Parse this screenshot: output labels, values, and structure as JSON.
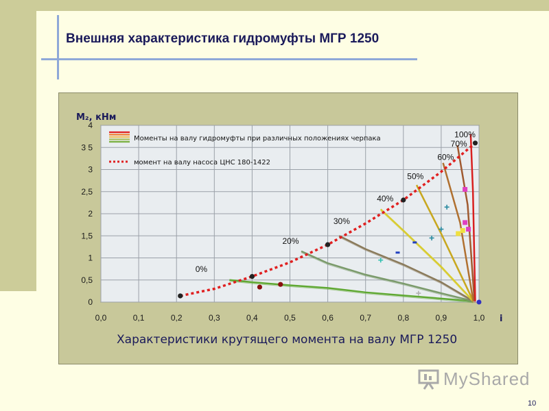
{
  "slide": {
    "title": "Внешняя характеристика гидромуфты МГР 1250",
    "page_number": "10",
    "logo_text": "MyShared"
  },
  "colors": {
    "panel_bg": "#c8c89a",
    "plot_bg": "#e9edf0",
    "pump_curve": "#e02020",
    "title_text": "#1a1a5a",
    "accent_line": "#8ea8d8"
  },
  "chart_data": {
    "type": "line",
    "title": "Характеристики крутящего момента на валу МГР 1250",
    "xlabel": "i",
    "ylabel": "М₂, кНм",
    "xlim": [
      0,
      1
    ],
    "ylim": [
      0,
      4
    ],
    "grid": true,
    "legend_position": "top-left",
    "x_tick_labels": [
      "0,0",
      "0,1",
      "0,2",
      "0,3",
      "0,4",
      "0,5",
      "0,6",
      "0,7",
      "0,8",
      "0,9",
      "1,0"
    ],
    "y_tick_labels": [
      "0",
      "0,5",
      "1",
      "1,5",
      "2",
      "2,5",
      "3",
      "3 5",
      "4"
    ],
    "legend": {
      "entry_curves": "Моменты на валу гидромуфты при различных положениях черпака",
      "entry_pump": "момент на валу насоса ЦНС 180-1422"
    },
    "series": [
      {
        "name": "0%",
        "color": "#5fa832",
        "points": [
          [
            0.34,
            0.5
          ],
          [
            0.4,
            0.45
          ],
          [
            0.5,
            0.38
          ],
          [
            0.6,
            0.32
          ],
          [
            0.7,
            0.22
          ],
          [
            0.8,
            0.15
          ],
          [
            0.9,
            0.08
          ],
          [
            0.985,
            0.02
          ]
        ]
      },
      {
        "name": "20%",
        "color": "#7a9a6a",
        "points": [
          [
            0.53,
            1.15
          ],
          [
            0.6,
            0.88
          ],
          [
            0.7,
            0.62
          ],
          [
            0.8,
            0.42
          ],
          [
            0.9,
            0.2
          ],
          [
            0.985,
            0.02
          ]
        ]
      },
      {
        "name": "30%",
        "color": "#8a7a5a",
        "points": [
          [
            0.63,
            1.5
          ],
          [
            0.7,
            1.2
          ],
          [
            0.8,
            0.85
          ],
          [
            0.9,
            0.45
          ],
          [
            0.985,
            0.02
          ]
        ]
      },
      {
        "name": "40%",
        "color": "#d8cc30",
        "points": [
          [
            0.74,
            2.1
          ],
          [
            0.8,
            1.62
          ],
          [
            0.9,
            0.8
          ],
          [
            0.985,
            0.02
          ]
        ]
      },
      {
        "name": "50%",
        "color": "#c8a820",
        "points": [
          [
            0.835,
            2.65
          ],
          [
            0.9,
            1.55
          ],
          [
            0.985,
            0.02
          ]
        ]
      },
      {
        "name": "60%",
        "color": "#b07030",
        "points": [
          [
            0.905,
            3.15
          ],
          [
            0.95,
            1.8
          ],
          [
            0.985,
            0.02
          ]
        ]
      },
      {
        "name": "70%",
        "color": "#a05a30",
        "points": [
          [
            0.943,
            3.55
          ],
          [
            0.97,
            2.2
          ],
          [
            0.988,
            0.02
          ]
        ]
      },
      {
        "name": "100%",
        "color": "#d82020",
        "points": [
          [
            0.978,
            3.8
          ],
          [
            0.984,
            2.5
          ],
          [
            0.99,
            0.02
          ]
        ]
      }
    ],
    "pump_curve": {
      "points": [
        [
          0.21,
          0.14
        ],
        [
          0.3,
          0.3
        ],
        [
          0.4,
          0.58
        ],
        [
          0.5,
          0.9
        ],
        [
          0.6,
          1.3
        ],
        [
          0.7,
          1.78
        ],
        [
          0.8,
          2.31
        ],
        [
          0.9,
          2.95
        ],
        [
          0.99,
          3.6
        ]
      ]
    },
    "pump_markers": [
      [
        0.21,
        0.14
      ],
      [
        0.4,
        0.58
      ],
      [
        0.6,
        1.3
      ],
      [
        0.8,
        2.31
      ],
      [
        0.99,
        3.6
      ]
    ],
    "dark_red_markers": [
      [
        0.42,
        0.34
      ],
      [
        0.475,
        0.4
      ]
    ],
    "scatter_marks": [
      {
        "x": 0.963,
        "y": 2.55,
        "color": "#e040c0",
        "shape": "square"
      },
      {
        "x": 0.963,
        "y": 1.8,
        "color": "#e040c0",
        "shape": "square"
      },
      {
        "x": 0.972,
        "y": 1.65,
        "color": "#e040c0",
        "shape": "square"
      },
      {
        "x": 0.945,
        "y": 1.55,
        "color": "#f0e040",
        "shape": "square"
      },
      {
        "x": 0.957,
        "y": 1.62,
        "color": "#f0e040",
        "shape": "square"
      },
      {
        "x": 0.915,
        "y": 2.15,
        "color": "#2a8aa0",
        "shape": "plus"
      },
      {
        "x": 0.9,
        "y": 1.65,
        "color": "#2a8aa0",
        "shape": "plus"
      },
      {
        "x": 0.875,
        "y": 1.45,
        "color": "#2a8aa0",
        "shape": "plus"
      },
      {
        "x": 0.74,
        "y": 0.95,
        "color": "#30c0b0",
        "shape": "plus"
      },
      {
        "x": 0.785,
        "y": 1.12,
        "color": "#2040c0",
        "shape": "dash"
      },
      {
        "x": 0.83,
        "y": 1.35,
        "color": "#2040c0",
        "shape": "dash"
      },
      {
        "x": 0.84,
        "y": 0.2,
        "color": "#b0b0b0",
        "shape": "plus"
      }
    ],
    "endpoint_marker": {
      "x": 1.0,
      "y": 0.0,
      "color": "#3030c0"
    },
    "curve_labels": [
      {
        "text": "0%",
        "x": 0.25,
        "y": 0.68
      },
      {
        "text": "20%",
        "x": 0.48,
        "y": 1.32
      },
      {
        "text": "30%",
        "x": 0.615,
        "y": 1.77
      },
      {
        "text": "40%",
        "x": 0.73,
        "y": 2.28
      },
      {
        "text": "50%",
        "x": 0.81,
        "y": 2.78
      },
      {
        "text": "60%",
        "x": 0.89,
        "y": 3.22
      },
      {
        "text": "70%",
        "x": 0.925,
        "y": 3.52
      },
      {
        "text": "100%",
        "x": 0.935,
        "y": 3.73
      }
    ]
  }
}
